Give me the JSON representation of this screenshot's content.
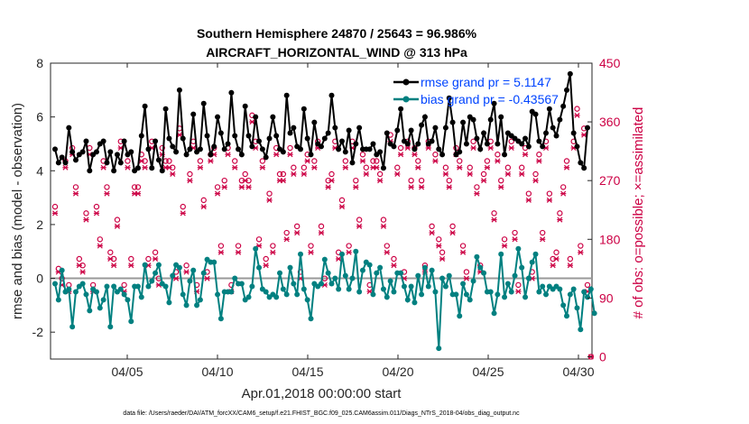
{
  "chart_data": {
    "type": "line",
    "title_line1": "Southern Hemisphere 24870 / 25643 = 96.986%",
    "title_line2": "AIRCRAFT_HORIZONTAL_WIND @ 313 hPa",
    "ylabel": "rmse and bias (model - observation)",
    "ylabel_right": "# of obs: o=possible; ×=assimilated",
    "xlabel": "Apr.01,2018 00:00:00 start",
    "footnote": "data file: /Users/raeder/DAI/ATM_forcXX/CAM6_setup/f.e21.FHIST_BGC.f09_025.CAM6assim.011/Diags_NTrS_2018-04/obs_diag_output.nc",
    "xlim": [
      0.75,
      30.75
    ],
    "ylim": [
      -3,
      8
    ],
    "ylim_right": [
      -3.5,
      450
    ],
    "xticks": [
      5,
      10,
      15,
      20,
      25,
      30
    ],
    "xtick_labels": [
      "04/05",
      "04/10",
      "04/15",
      "04/20",
      "04/25",
      "04/30"
    ],
    "yticks": [
      -2,
      0,
      2,
      4,
      6,
      8
    ],
    "ytick_labels": [
      "-2",
      "0",
      "2",
      "4",
      "6",
      "8"
    ],
    "yticks_right": [
      0,
      90,
      180,
      270,
      360,
      450
    ],
    "ytick_labels_right": [
      "0",
      "90",
      "180",
      "270",
      "360",
      "450"
    ],
    "colors": {
      "rmse": "#000000",
      "bias": "#008080",
      "obs": "#cc0044",
      "zero": "#999999"
    },
    "series": [
      {
        "name": "rmse grand pr = 5.1147",
        "color": "#000000",
        "values": [
          4.8,
          4.3,
          4.5,
          4.3,
          5.6,
          4.7,
          4.4,
          4.6,
          4.7,
          5.1,
          4.0,
          4.6,
          4.7,
          5.0,
          5.1,
          4.3,
          4.7,
          4.0,
          4.6,
          4.3,
          5.1,
          4.6,
          4.7,
          4.0,
          4.1,
          5.3,
          6.4,
          4.8,
          4.1,
          5.1,
          4.4,
          4.0,
          6.3,
          5.2,
          4.9,
          4.7,
          7.0,
          5.2,
          4.6,
          4.8,
          6.1,
          4.7,
          4.8,
          6.5,
          5.3,
          4.6,
          4.9,
          6.0,
          5.4,
          4.8,
          5.0,
          6.9,
          5.3,
          4.8,
          4.6,
          6.4,
          5.3,
          4.9,
          6.0,
          5.1,
          4.8,
          4.5,
          5.2,
          6.0,
          5.3,
          4.8,
          4.7,
          6.8,
          5.4,
          5.6,
          4.9,
          4.8,
          6.3,
          5.2,
          4.6,
          5.8,
          5.0,
          4.9,
          5.2,
          5.4,
          6.8,
          5.6,
          4.8,
          5.1,
          4.7,
          5.5,
          4.3,
          5.0,
          5.6,
          4.8,
          4.8,
          4.8,
          5.0,
          4.6,
          4.7,
          4.1,
          5.4,
          5.0,
          4.9,
          5.5,
          6.3,
          5.1,
          5.0,
          5.5,
          4.8,
          5.0,
          5.7,
          6.0,
          5.0,
          5.1,
          5.6,
          4.8,
          4.6,
          5.6,
          6.7,
          5.8,
          4.6,
          4.7,
          5.8,
          5.0,
          6.0,
          5.9,
          5.2,
          4.8,
          5.4,
          5.0,
          5.9,
          6.5,
          5.0,
          6.0,
          4.6,
          5.4,
          5.3,
          5.2,
          5.1,
          5.0,
          5.2,
          4.9,
          6.2,
          6.1,
          5.1,
          4.9,
          5.4,
          6.3,
          5.6,
          5.3,
          5.9,
          6.4,
          7.0,
          7.6,
          5.4,
          4.9,
          4.3,
          4.1,
          5.6
        ]
      },
      {
        "name": "bias grand pr = -0.43567",
        "color": "#008080",
        "values": [
          -0.2,
          -0.8,
          0.3,
          -0.5,
          -0.4,
          -1.8,
          -0.5,
          -0.3,
          -0.2,
          -0.6,
          -1.2,
          -0.4,
          -0.5,
          -1.1,
          -0.8,
          -0.3,
          -1.8,
          -0.3,
          -0.5,
          -0.4,
          -0.6,
          -0.8,
          -1.6,
          -0.3,
          -0.3,
          -0.7,
          0.5,
          -0.3,
          -0.1,
          0.2,
          0.5,
          -0.2,
          -0.3,
          -0.9,
          0.1,
          0.5,
          0.4,
          -0.6,
          -1.0,
          -0.1,
          0.3,
          -1.0,
          -0.8,
          0.2,
          0.7,
          0.6,
          0.6,
          -0.6,
          -1.5,
          -0.5,
          -0.5,
          -0.5,
          0.0,
          -0.2,
          -0.2,
          -0.8,
          -0.7,
          -0.3,
          1.1,
          0.4,
          -0.4,
          -0.5,
          -0.7,
          -0.6,
          -0.7,
          0.2,
          -0.4,
          -0.6,
          0.4,
          -0.2,
          -0.6,
          0.9,
          -0.4,
          -0.8,
          -1.5,
          -0.2,
          -0.3,
          -0.2,
          0.7,
          0.2,
          -0.2,
          0.0,
          -0.4,
          0.9,
          0.1,
          -0.4,
          0.0,
          1.0,
          -0.5,
          0.3,
          0.6,
          0.5,
          -0.6,
          0.2,
          0.4,
          -0.4,
          -0.7,
          -0.1,
          -0.5,
          0.2,
          0.2,
          -0.3,
          -0.8,
          -0.3,
          -0.9,
          0.1,
          -0.6,
          0.4,
          -0.3,
          0.3,
          -0.5,
          -2.6,
          0.0,
          -0.3,
          0.1,
          -0.6,
          -0.6,
          -1.4,
          -0.2,
          -0.6,
          -0.8,
          -0.1,
          0.8,
          0.4,
          0.2,
          -0.5,
          -0.5,
          -1.3,
          -0.6,
          0.9,
          -0.7,
          -0.2,
          -0.5,
          0.1,
          1.1,
          0.4,
          -0.7,
          0.0,
          0.6,
          0.9,
          -0.5,
          -0.3,
          -0.6,
          -0.3,
          -0.4,
          -0.3,
          -0.4,
          -1.0,
          -1.4,
          -0.6,
          -0.4,
          -1.1,
          -1.9,
          -0.5,
          -0.7,
          -0.4,
          -1.3
        ]
      }
    ],
    "obs_possible": [
      230,
      135,
      120,
      300,
      110,
      320,
      260,
      150,
      140,
      220,
      320,
      110,
      230,
      180,
      300,
      260,
      160,
      150,
      210,
      330,
      110,
      300,
      150,
      260,
      260,
      310,
      300,
      150,
      330,
      160,
      120,
      320,
      300,
      300,
      290,
      130,
      350,
      230,
      140,
      280,
      330,
      110,
      300,
      240,
      130,
      310,
      320,
      260,
      170,
      270,
      320,
      110,
      300,
      170,
      270,
      280,
      270,
      370,
      330,
      180,
      300,
      150,
      250,
      170,
      320,
      280,
      280,
      190,
      320,
      290,
      200,
      130,
      290,
      310,
      170,
      300,
      330,
      200,
      120,
      270,
      280,
      330,
      160,
      240,
      300,
      170,
      330,
      270,
      210,
      310,
      290,
      110,
      300,
      300,
      280,
      210,
      170,
      340,
      150,
      290,
      320,
      130,
      330,
      270,
      320,
      300,
      270,
      140,
      330,
      200,
      310,
      180,
      160,
      290,
      270,
      200,
      320,
      300,
      170,
      130,
      290,
      330,
      260,
      140,
      280,
      300,
      330,
      220,
      310,
      270,
      180,
      290,
      330,
      190,
      110,
      290,
      320,
      250,
      130,
      280,
      310,
      190,
      330,
      250,
      150,
      160,
      220,
      260,
      300,
      150,
      330,
      380,
      170,
      350,
      110,
      0
    ],
    "obs_assimilated": [
      220,
      130,
      110,
      290,
      100,
      310,
      250,
      140,
      130,
      210,
      310,
      100,
      220,
      170,
      290,
      250,
      150,
      140,
      200,
      320,
      100,
      290,
      140,
      250,
      250,
      300,
      290,
      140,
      320,
      150,
      110,
      310,
      290,
      290,
      280,
      120,
      340,
      220,
      130,
      270,
      320,
      100,
      290,
      230,
      120,
      300,
      310,
      250,
      160,
      260,
      310,
      100,
      290,
      160,
      260,
      270,
      260,
      360,
      320,
      170,
      290,
      140,
      240,
      160,
      310,
      270,
      270,
      180,
      310,
      280,
      190,
      120,
      280,
      300,
      160,
      290,
      320,
      190,
      110,
      260,
      270,
      320,
      150,
      230,
      290,
      160,
      320,
      260,
      200,
      300,
      280,
      100,
      290,
      290,
      270,
      200,
      160,
      330,
      140,
      280,
      310,
      120,
      320,
      260,
      310,
      290,
      260,
      130,
      320,
      190,
      300,
      170,
      150,
      280,
      260,
      190,
      310,
      290,
      160,
      120,
      280,
      320,
      250,
      130,
      270,
      290,
      320,
      210,
      300,
      260,
      170,
      280,
      320,
      180,
      100,
      280,
      310,
      240,
      120,
      270,
      300,
      180,
      320,
      240,
      140,
      150,
      210,
      250,
      290,
      140,
      320,
      370,
      160,
      340,
      100,
      0
    ]
  }
}
